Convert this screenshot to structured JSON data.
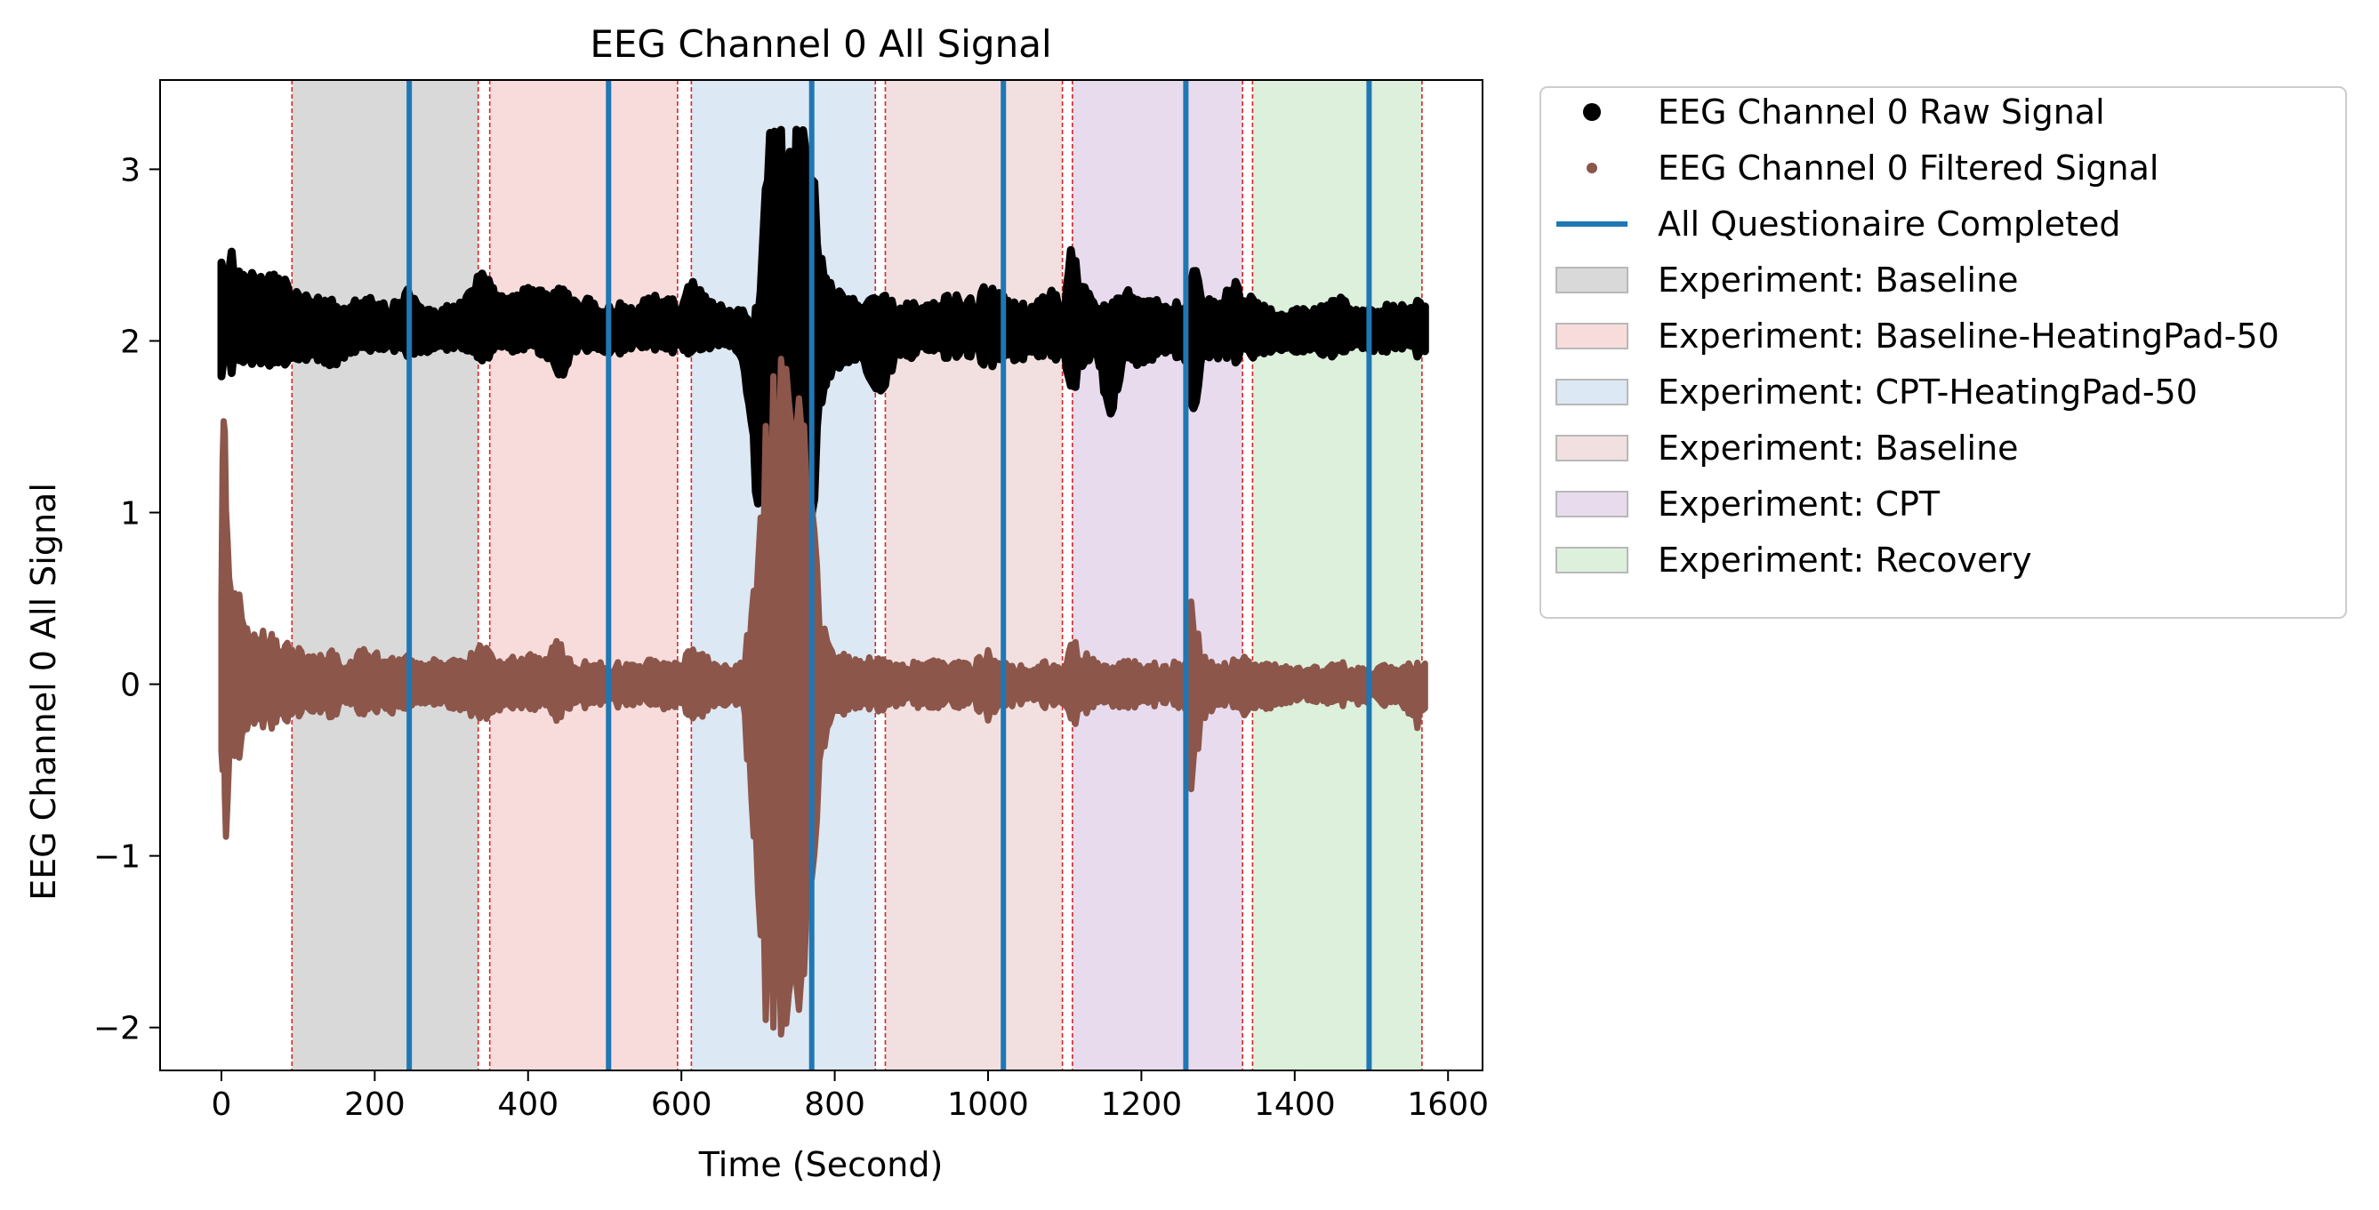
{
  "chart_data": {
    "type": "line",
    "title": "EEG Channel 0 All Signal",
    "xlabel": "Time (Second)",
    "ylabel": "EEG Channel 0 All Signal",
    "xlim": [
      -80,
      1645
    ],
    "ylim": [
      -2.25,
      3.52
    ],
    "xticks": [
      0,
      200,
      400,
      600,
      800,
      1000,
      1200,
      1400,
      1600
    ],
    "xtick_labels": [
      "0",
      "200",
      "400",
      "600",
      "800",
      "1000",
      "1200",
      "1400",
      "1600"
    ],
    "yticks": [
      -2,
      -1,
      0,
      1,
      2,
      3
    ],
    "ytick_labels": [
      "−2",
      "−1",
      "0",
      "1",
      "2",
      "3"
    ],
    "grid": false,
    "legend_position": "outside-upper-right",
    "colors": {
      "raw": "#000000",
      "filtered": "#8c564b",
      "questionnaire": "#1f77b4",
      "boundary": "#d62728"
    },
    "series": [
      {
        "name": "EEG Channel 0 Raw Signal",
        "style": "dots",
        "color": "#000000",
        "envelope": {
          "x": [
            0,
            10,
            20,
            40,
            60,
            80,
            95,
            120,
            150,
            160,
            180,
            200,
            220,
            240,
            260,
            280,
            300,
            320,
            340,
            360,
            380,
            400,
            420,
            440,
            460,
            480,
            500,
            520,
            540,
            560,
            580,
            600,
            615,
            640,
            660,
            680,
            700,
            710,
            730,
            750,
            770,
            780,
            800,
            830,
            860,
            880,
            900,
            920,
            950,
            980,
            1000,
            1020,
            1040,
            1060,
            1080,
            1100,
            1108,
            1120,
            1140,
            1160,
            1180,
            1200,
            1220,
            1240,
            1260,
            1265,
            1280,
            1300,
            1320,
            1340,
            1360,
            1380,
            1400,
            1420,
            1440,
            1460,
            1480,
            1500,
            1520,
            1540,
            1560,
            1570
          ],
          "upper": [
            2.5,
            2.54,
            2.46,
            2.42,
            2.38,
            2.36,
            2.28,
            2.24,
            2.24,
            2.2,
            2.26,
            2.28,
            2.2,
            2.3,
            2.2,
            2.18,
            2.22,
            2.26,
            2.4,
            2.3,
            2.28,
            2.32,
            2.28,
            2.34,
            2.24,
            2.26,
            2.18,
            2.22,
            2.18,
            2.28,
            2.24,
            2.22,
            2.38,
            2.22,
            2.2,
            2.18,
            2.2,
            3.22,
            3.22,
            3.22,
            3.22,
            2.5,
            2.3,
            2.22,
            2.28,
            2.2,
            2.22,
            2.24,
            2.28,
            2.24,
            2.34,
            2.26,
            2.2,
            2.22,
            2.3,
            2.2,
            2.6,
            2.36,
            2.24,
            2.2,
            2.3,
            2.22,
            2.26,
            2.24,
            2.2,
            2.58,
            2.3,
            2.22,
            2.34,
            2.28,
            2.2,
            2.16,
            2.18,
            2.18,
            2.2,
            2.28,
            2.2,
            2.18,
            2.2,
            2.22,
            2.24,
            2.2
          ],
          "lower": [
            1.76,
            1.8,
            1.82,
            1.84,
            1.86,
            1.86,
            1.88,
            1.9,
            1.84,
            1.9,
            1.92,
            1.9,
            1.94,
            1.92,
            1.92,
            1.94,
            1.94,
            1.94,
            1.9,
            1.94,
            1.92,
            1.96,
            1.92,
            1.76,
            1.94,
            1.94,
            1.92,
            1.92,
            1.96,
            1.94,
            1.96,
            1.92,
            1.9,
            1.96,
            1.96,
            1.9,
            1.0,
            0.7,
            0.75,
            0.78,
            0.72,
            1.6,
            1.84,
            1.9,
            1.66,
            1.9,
            1.9,
            1.92,
            1.88,
            1.92,
            1.84,
            1.9,
            1.9,
            1.92,
            1.92,
            1.88,
            1.66,
            1.82,
            1.9,
            1.56,
            1.9,
            1.86,
            1.9,
            1.9,
            1.88,
            1.4,
            1.86,
            1.9,
            1.88,
            1.9,
            1.92,
            1.94,
            1.94,
            1.94,
            1.92,
            1.9,
            1.94,
            1.94,
            1.94,
            1.94,
            1.92,
            1.94
          ]
        }
      },
      {
        "name": "EEG Channel 0 Filtered Signal",
        "style": "dots",
        "color": "#8c564b",
        "envelope": {
          "x": [
            0,
            3,
            6,
            10,
            15,
            20,
            30,
            40,
            60,
            80,
            95,
            120,
            150,
            160,
            180,
            200,
            220,
            240,
            260,
            280,
            300,
            320,
            340,
            360,
            380,
            400,
            420,
            440,
            460,
            480,
            500,
            520,
            540,
            560,
            580,
            600,
            615,
            640,
            660,
            680,
            700,
            710,
            720,
            730,
            740,
            750,
            760,
            770,
            780,
            790,
            800,
            830,
            860,
            880,
            900,
            920,
            950,
            980,
            1000,
            1020,
            1040,
            1060,
            1080,
            1100,
            1108,
            1120,
            1140,
            1160,
            1180,
            1200,
            1220,
            1240,
            1260,
            1265,
            1280,
            1300,
            1320,
            1340,
            1360,
            1380,
            1400,
            1420,
            1440,
            1460,
            1480,
            1500,
            1520,
            1540,
            1560,
            1570
          ],
          "upper": [
            0.5,
            2.1,
            1.2,
            0.8,
            0.5,
            0.68,
            0.4,
            0.36,
            0.32,
            0.24,
            0.22,
            0.16,
            0.2,
            0.14,
            0.2,
            0.2,
            0.14,
            0.2,
            0.12,
            0.14,
            0.16,
            0.14,
            0.3,
            0.14,
            0.16,
            0.18,
            0.14,
            0.26,
            0.12,
            0.14,
            0.12,
            0.12,
            0.12,
            0.14,
            0.12,
            0.12,
            0.3,
            0.12,
            0.1,
            0.12,
            0.7,
            1.5,
            1.8,
            1.9,
            1.8,
            1.75,
            1.5,
            1.2,
            0.5,
            0.3,
            0.2,
            0.14,
            0.16,
            0.12,
            0.12,
            0.14,
            0.14,
            0.12,
            0.2,
            0.14,
            0.1,
            0.12,
            0.14,
            0.12,
            0.38,
            0.2,
            0.14,
            0.1,
            0.14,
            0.12,
            0.12,
            0.12,
            0.14,
            0.52,
            0.16,
            0.12,
            0.14,
            0.18,
            0.12,
            0.1,
            0.1,
            0.1,
            0.1,
            0.14,
            0.1,
            0.1,
            0.12,
            0.1,
            0.14,
            0.12
          ],
          "lower": [
            -0.4,
            -0.6,
            -1.06,
            -0.6,
            -0.4,
            -0.56,
            -0.32,
            -0.3,
            -0.26,
            -0.22,
            -0.2,
            -0.16,
            -0.2,
            -0.14,
            -0.18,
            -0.18,
            -0.16,
            -0.18,
            -0.12,
            -0.12,
            -0.16,
            -0.16,
            -0.26,
            -0.16,
            -0.14,
            -0.16,
            -0.12,
            -0.22,
            -0.14,
            -0.14,
            -0.12,
            -0.14,
            -0.12,
            -0.12,
            -0.14,
            -0.12,
            -0.3,
            -0.12,
            -0.12,
            -0.12,
            -1.2,
            -1.96,
            -2.0,
            -2.04,
            -1.96,
            -2.0,
            -1.7,
            -1.3,
            -0.6,
            -0.3,
            -0.2,
            -0.14,
            -0.16,
            -0.12,
            -0.12,
            -0.14,
            -0.14,
            -0.12,
            -0.22,
            -0.14,
            -0.12,
            -0.12,
            -0.14,
            -0.14,
            -0.34,
            -0.22,
            -0.12,
            -0.12,
            -0.14,
            -0.12,
            -0.12,
            -0.12,
            -0.16,
            -0.66,
            -0.2,
            -0.14,
            -0.14,
            -0.2,
            -0.14,
            -0.12,
            -0.1,
            -0.1,
            -0.12,
            -0.12,
            -0.12,
            -0.1,
            -0.12,
            -0.12,
            -0.26,
            -0.14
          ]
        }
      }
    ],
    "questionnaire_lines": {
      "name": "All Questionaire Completed",
      "color": "#1f77b4",
      "x": [
        245,
        505,
        770,
        1020,
        1258,
        1497
      ]
    },
    "boundary_lines": {
      "color": "#d62728",
      "style": "dashed",
      "x": [
        92,
        335,
        350,
        595,
        613,
        853,
        866,
        1097,
        1110,
        1332,
        1345,
        1566
      ]
    },
    "regions": [
      {
        "name": "Experiment: Baseline",
        "start": 92,
        "end": 335,
        "color": "#d9d9d9"
      },
      {
        "name": "Experiment: Baseline-HeatingPad-50",
        "start": 350,
        "end": 595,
        "color": "#f8dcdc"
      },
      {
        "name": "Experiment: CPT-HeatingPad-50",
        "start": 613,
        "end": 853,
        "color": "#dce8f3"
      },
      {
        "name": "Experiment: Baseline",
        "start": 866,
        "end": 1097,
        "color": "#f2e0e0"
      },
      {
        "name": "Experiment: CPT",
        "start": 1110,
        "end": 1332,
        "color": "#e8dbee"
      },
      {
        "name": "Experiment: Recovery",
        "start": 1345,
        "end": 1566,
        "color": "#ddf0dc"
      }
    ],
    "legend": [
      {
        "label": "EEG Channel 0 Raw Signal",
        "kind": "dot-large",
        "color": "#000000"
      },
      {
        "label": "EEG Channel 0 Filtered Signal",
        "kind": "dot-small",
        "color": "#8c564b"
      },
      {
        "label": "All Questionaire Completed",
        "kind": "line",
        "color": "#1f77b4"
      },
      {
        "label": "Experiment: Baseline",
        "kind": "patch",
        "color": "#d9d9d9"
      },
      {
        "label": "Experiment: Baseline-HeatingPad-50",
        "kind": "patch",
        "color": "#f8dcdc"
      },
      {
        "label": "Experiment: CPT-HeatingPad-50",
        "kind": "patch",
        "color": "#dce8f3"
      },
      {
        "label": "Experiment: Baseline",
        "kind": "patch",
        "color": "#f2e0e0"
      },
      {
        "label": "Experiment: CPT",
        "kind": "patch",
        "color": "#e8dbee"
      },
      {
        "label": "Experiment: Recovery",
        "kind": "patch",
        "color": "#ddf0dc"
      }
    ]
  }
}
